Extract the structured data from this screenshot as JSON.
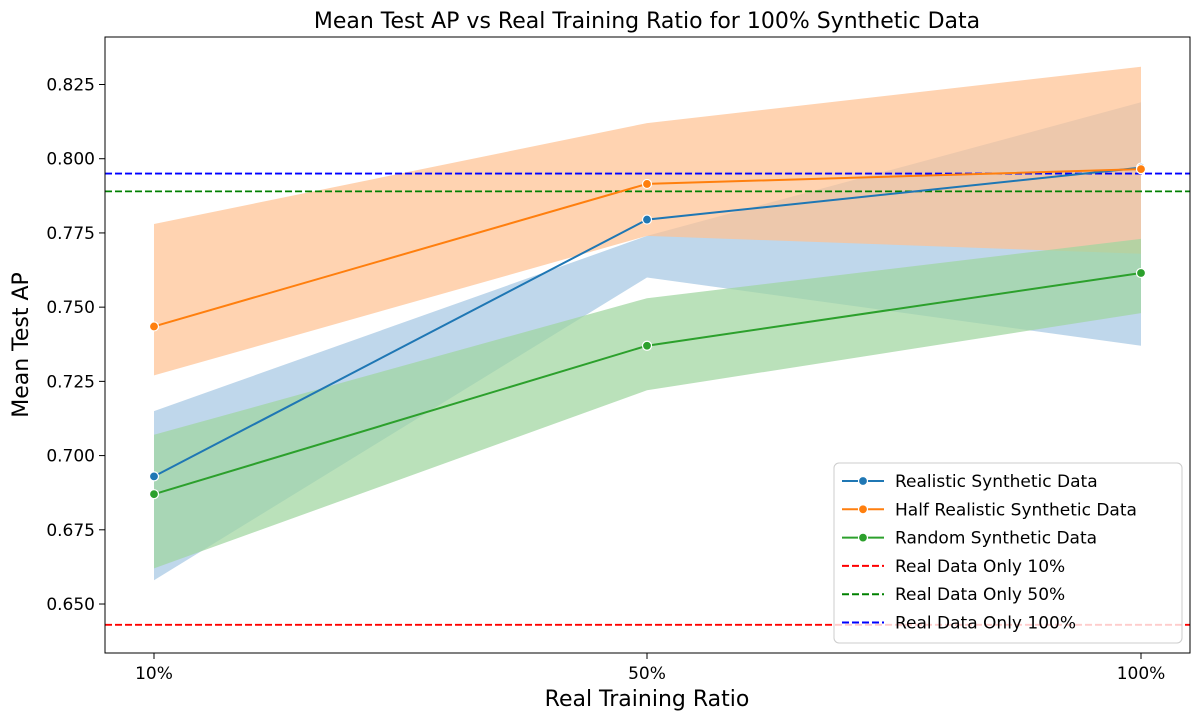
{
  "chart_data": {
    "type": "line",
    "title": "Mean Test AP vs Real Training Ratio for 100% Synthetic Data",
    "xlabel": "Real Training Ratio",
    "ylabel": "Mean Test AP",
    "categories": [
      "10%",
      "50%",
      "100%"
    ],
    "ylim": [
      0.6335,
      0.841
    ],
    "yticks": [
      0.65,
      0.675,
      0.7,
      0.725,
      0.75,
      0.775,
      0.8,
      0.825
    ],
    "ytick_labels": [
      "0.650",
      "0.675",
      "0.700",
      "0.725",
      "0.750",
      "0.775",
      "0.800",
      "0.825"
    ],
    "legend_position": "lower-right",
    "series": [
      {
        "name": "Realistic Synthetic Data",
        "color": "#1f77b4",
        "band_color": "#a6c8e3",
        "values": [
          0.693,
          0.7795,
          0.797
        ],
        "lower": [
          0.658,
          0.76,
          0.737
        ],
        "upper": [
          0.715,
          0.774,
          0.819
        ]
      },
      {
        "name": "Half Realistic Synthetic Data",
        "color": "#ff7f0e",
        "band_color": "#ffc293",
        "values": [
          0.7435,
          0.7915,
          0.7965
        ],
        "lower": [
          0.727,
          0.774,
          0.768
        ],
        "upper": [
          0.778,
          0.812,
          0.831
        ]
      },
      {
        "name": "Random Synthetic Data",
        "color": "#2ca02c",
        "band_color": "#9fd69f",
        "values": [
          0.687,
          0.737,
          0.7615
        ],
        "lower": [
          0.662,
          0.722,
          0.748
        ],
        "upper": [
          0.707,
          0.753,
          0.773
        ]
      }
    ],
    "reference_lines": [
      {
        "name": "Real Data Only 10%",
        "value": 0.643,
        "color": "#ff0000"
      },
      {
        "name": "Real Data Only 50%",
        "value": 0.789,
        "color": "#008000"
      },
      {
        "name": "Real Data Only 100%",
        "value": 0.795,
        "color": "#0000ff"
      }
    ]
  }
}
